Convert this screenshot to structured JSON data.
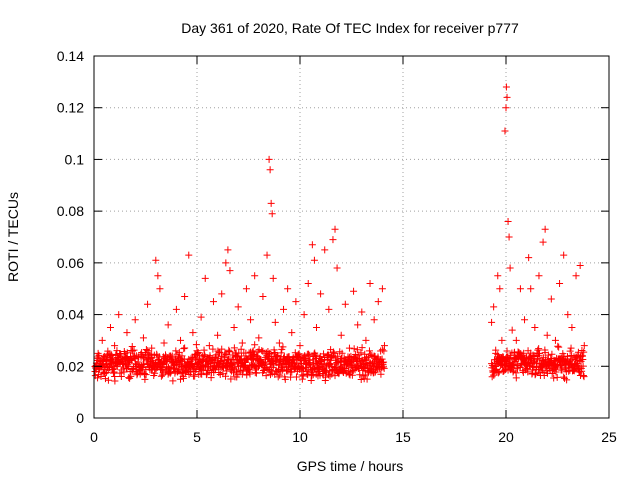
{
  "chart_data": {
    "type": "scatter",
    "title": "Day 361 of 2020, Rate Of TEC Index for receiver p777",
    "xlabel": "GPS time / hours",
    "ylabel": "ROTI / TECUs",
    "xlim": [
      0,
      25
    ],
    "ylim": [
      0,
      0.14
    ],
    "xticks": [
      0,
      5,
      10,
      15,
      20,
      25
    ],
    "xtick_labels": [
      "0",
      "5",
      "10",
      "15",
      "20",
      "25"
    ],
    "yticks": [
      0,
      0.02,
      0.04,
      0.06,
      0.08,
      0.1,
      0.12,
      0.14
    ],
    "ytick_labels": [
      "0",
      "0.02",
      "0.04",
      "0.06",
      "0.08",
      "0.1",
      "0.12",
      "0.14"
    ],
    "grid": true,
    "marker": "+",
    "color": "#ff0000",
    "series": [
      {
        "name": "ROTI",
        "points": [
          [
            0.05,
            0.018
          ],
          [
            0.2,
            0.025
          ],
          [
            0.4,
            0.03
          ],
          [
            0.6,
            0.021
          ],
          [
            0.8,
            0.035
          ],
          [
            1.0,
            0.028
          ],
          [
            1.2,
            0.04
          ],
          [
            1.4,
            0.022
          ],
          [
            1.6,
            0.033
          ],
          [
            1.8,
            0.026
          ],
          [
            2.0,
            0.038
          ],
          [
            2.2,
            0.02
          ],
          [
            2.4,
            0.031
          ],
          [
            2.6,
            0.044
          ],
          [
            2.8,
            0.027
          ],
          [
            3.0,
            0.061
          ],
          [
            3.1,
            0.055
          ],
          [
            3.2,
            0.05
          ],
          [
            3.4,
            0.029
          ],
          [
            3.6,
            0.036
          ],
          [
            3.8,
            0.024
          ],
          [
            4.0,
            0.042
          ],
          [
            4.2,
            0.03
          ],
          [
            4.4,
            0.047
          ],
          [
            4.6,
            0.063
          ],
          [
            4.8,
            0.033
          ],
          [
            5.0,
            0.026
          ],
          [
            5.2,
            0.039
          ],
          [
            5.4,
            0.054
          ],
          [
            5.6,
            0.028
          ],
          [
            5.8,
            0.045
          ],
          [
            6.0,
            0.032
          ],
          [
            6.2,
            0.048
          ],
          [
            6.4,
            0.06
          ],
          [
            6.5,
            0.065
          ],
          [
            6.6,
            0.057
          ],
          [
            6.8,
            0.035
          ],
          [
            7.0,
            0.043
          ],
          [
            7.2,
            0.029
          ],
          [
            7.4,
            0.05
          ],
          [
            7.6,
            0.038
          ],
          [
            7.8,
            0.055
          ],
          [
            8.0,
            0.031
          ],
          [
            8.2,
            0.047
          ],
          [
            8.4,
            0.063
          ],
          [
            8.5,
            0.1
          ],
          [
            8.55,
            0.096
          ],
          [
            8.6,
            0.083
          ],
          [
            8.65,
            0.079
          ],
          [
            8.7,
            0.054
          ],
          [
            8.8,
            0.037
          ],
          [
            9.0,
            0.029
          ],
          [
            9.2,
            0.042
          ],
          [
            9.4,
            0.05
          ],
          [
            9.6,
            0.033
          ],
          [
            9.8,
            0.045
          ],
          [
            10.0,
            0.028
          ],
          [
            10.2,
            0.04
          ],
          [
            10.4,
            0.052
          ],
          [
            10.6,
            0.067
          ],
          [
            10.7,
            0.061
          ],
          [
            10.8,
            0.035
          ],
          [
            11.0,
            0.048
          ],
          [
            11.2,
            0.065
          ],
          [
            11.4,
            0.042
          ],
          [
            11.6,
            0.069
          ],
          [
            11.7,
            0.073
          ],
          [
            11.8,
            0.058
          ],
          [
            12.0,
            0.032
          ],
          [
            12.2,
            0.044
          ],
          [
            12.4,
            0.027
          ],
          [
            12.6,
            0.049
          ],
          [
            12.8,
            0.036
          ],
          [
            13.0,
            0.041
          ],
          [
            13.2,
            0.03
          ],
          [
            13.4,
            0.052
          ],
          [
            13.6,
            0.038
          ],
          [
            13.8,
            0.045
          ],
          [
            14.0,
            0.05
          ],
          [
            14.1,
            0.028
          ],
          [
            19.3,
            0.037
          ],
          [
            19.4,
            0.043
          ],
          [
            19.5,
            0.025
          ],
          [
            19.6,
            0.055
          ],
          [
            19.7,
            0.05
          ],
          [
            19.8,
            0.03
          ],
          [
            19.9,
            0.022
          ],
          [
            19.95,
            0.111
          ],
          [
            20.0,
            0.12
          ],
          [
            20.02,
            0.128
          ],
          [
            20.05,
            0.124
          ],
          [
            20.1,
            0.076
          ],
          [
            20.15,
            0.07
          ],
          [
            20.2,
            0.058
          ],
          [
            20.3,
            0.034
          ],
          [
            20.5,
            0.03
          ],
          [
            20.7,
            0.05
          ],
          [
            20.9,
            0.038
          ],
          [
            21.1,
            0.062
          ],
          [
            21.2,
            0.05
          ],
          [
            21.4,
            0.035
          ],
          [
            21.6,
            0.055
          ],
          [
            21.8,
            0.068
          ],
          [
            21.9,
            0.073
          ],
          [
            22.0,
            0.032
          ],
          [
            22.2,
            0.046
          ],
          [
            22.4,
            0.03
          ],
          [
            22.6,
            0.052
          ],
          [
            22.8,
            0.063
          ],
          [
            23.0,
            0.04
          ],
          [
            23.2,
            0.035
          ],
          [
            23.4,
            0.055
          ],
          [
            23.6,
            0.059
          ],
          [
            23.8,
            0.028
          ]
        ]
      }
    ]
  }
}
